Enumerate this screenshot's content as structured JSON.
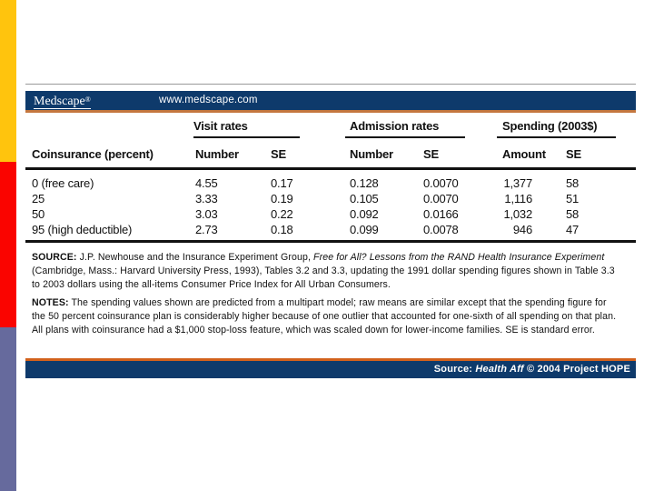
{
  "accent_bars": {
    "yellow": "#FFC40D",
    "red": "#FA0400",
    "slate": "#666A9D"
  },
  "banner": {
    "logo": "Medscape",
    "trademark": "®",
    "url": "www.medscape.com",
    "navy": "#0E3A6B",
    "orange_rule": "#C4773F"
  },
  "table": {
    "group_headers": [
      {
        "label": "Visit rates"
      },
      {
        "label": "Admission rates"
      },
      {
        "label": "Spending (2003$)"
      }
    ],
    "row_header_label": "Coinsurance (percent)",
    "col_headers": [
      "Number",
      "SE",
      "Number",
      "SE",
      "Amount",
      "SE"
    ],
    "rows": [
      {
        "label": "0 (free care)",
        "cells": [
          "4.55",
          "0.17",
          "0.128",
          "0.0070",
          "1,377",
          "58"
        ]
      },
      {
        "label": "25",
        "cells": [
          "3.33",
          "0.19",
          "0.105",
          "0.0070",
          "1,116",
          "51"
        ]
      },
      {
        "label": "50",
        "cells": [
          "3.03",
          "0.22",
          "0.092",
          "0.0166",
          "1,032",
          "58"
        ]
      },
      {
        "label": "95 (high deductible)",
        "cells": [
          "2.73",
          "0.18",
          "0.099",
          "0.0078",
          "946",
          "47"
        ]
      }
    ]
  },
  "source": {
    "label": "SOURCE:",
    "pre_italic": " J.P. Newhouse and the Insurance Experiment Group, ",
    "italic": "Free for All? Lessons from the RAND Health Insurance Experiment",
    "post_italic": " (Cambridge, Mass.: Harvard University Press, 1993), Tables 3.2 and 3.3, updating the 1991 dollar spending figures shown in Table 3.3 to 2003 dollars using the all-items Consumer Price Index for All Urban Consumers."
  },
  "notes": {
    "label": "NOTES:",
    "text": " The spending values shown are predicted from a multipart model; raw means are similar except that the spending figure for the 50 percent coinsurance plan is considerably higher because of one outlier that accounted for one-sixth of all spending on that plan. All plans with coinsurance had a $1,000 stop-loss feature, which was scaled down for lower-income families. SE is standard error."
  },
  "footer": {
    "pre": "Source: ",
    "journal": "Health Aff",
    "post": " © 2004 Project HOPE"
  }
}
